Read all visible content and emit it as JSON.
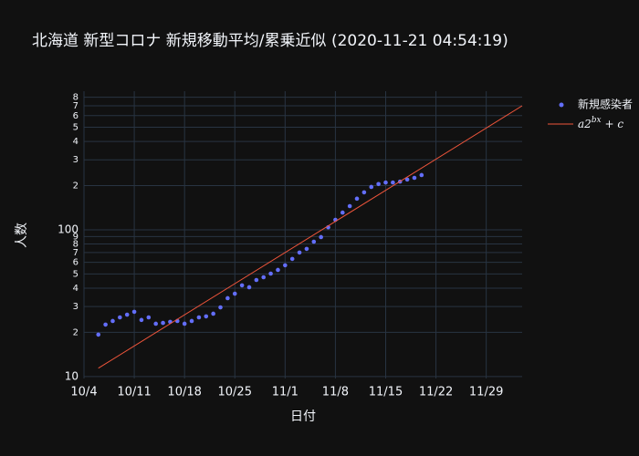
{
  "chart_data": {
    "type": "scatter",
    "title": "北海道 新型コロナ 新規移動平均/累乗近似 (2020-11-21 04:54:19)",
    "x_label": "日付",
    "y_label": "人数",
    "log_y": true,
    "grid": true,
    "legend": "top-right",
    "xlim": [
      "10/4",
      "12/4"
    ],
    "xticks": [
      "10/4",
      "10/11",
      "10/18",
      "10/25",
      "11/1",
      "11/8",
      "11/15",
      "11/22",
      "11/29"
    ],
    "ylim": [
      9.7,
      880
    ],
    "yticks": [
      10,
      {
        "value": 20,
        "label": "2"
      },
      {
        "value": 30,
        "label": "3"
      },
      {
        "value": 40,
        "label": "4"
      },
      {
        "value": 50,
        "label": "5"
      },
      {
        "value": 60,
        "label": "6"
      },
      {
        "value": 70,
        "label": "7"
      },
      {
        "value": 80,
        "label": "8"
      },
      {
        "value": 90,
        "label": "9"
      },
      100,
      {
        "value": 200,
        "label": "2"
      },
      {
        "value": 300,
        "label": "3"
      },
      {
        "value": 400,
        "label": "4"
      },
      {
        "value": 500,
        "label": "5"
      },
      {
        "value": 600,
        "label": "6"
      },
      {
        "value": 700,
        "label": "7"
      },
      {
        "value": 800,
        "label": "8"
      }
    ],
    "series": [
      {
        "name": "新規感染者",
        "color": "#636efa",
        "mode": "markers",
        "x": [
          "10/6",
          "10/7",
          "10/8",
          "10/9",
          "10/10",
          "10/11",
          "10/12",
          "10/13",
          "10/14",
          "10/15",
          "10/16",
          "10/17",
          "10/18",
          "10/19",
          "10/20",
          "10/21",
          "10/22",
          "10/23",
          "10/24",
          "10/25",
          "10/26",
          "10/27",
          "10/28",
          "10/29",
          "10/30",
          "10/31",
          "11/1",
          "11/2",
          "11/3",
          "11/4",
          "11/5",
          "11/6",
          "11/7",
          "11/8",
          "11/9",
          "11/10",
          "11/11",
          "11/12",
          "11/13",
          "11/14",
          "11/15",
          "11/16",
          "11/17",
          "11/18",
          "11/19",
          "11/20"
        ],
        "values": [
          19.3,
          22.6,
          23.9,
          25.3,
          26.4,
          27.6,
          24.3,
          25.3,
          22.9,
          23.2,
          23.6,
          23.9,
          22.9,
          23.9,
          25.3,
          25.7,
          26.8,
          29.6,
          34.2,
          36.7,
          41.8,
          40.6,
          45.5,
          47.5,
          50.3,
          53.3,
          57.3,
          63.3,
          70,
          74.1,
          83,
          89.2,
          104,
          117,
          131,
          145,
          163,
          180,
          196,
          205,
          210,
          210,
          213,
          220,
          226,
          236
        ]
      },
      {
        "name": "a2^{bx} + c",
        "color": "#ef553b",
        "mode": "lines",
        "x": [
          "10/6",
          "12/4"
        ],
        "values": [
          11.4,
          700
        ]
      }
    ]
  }
}
